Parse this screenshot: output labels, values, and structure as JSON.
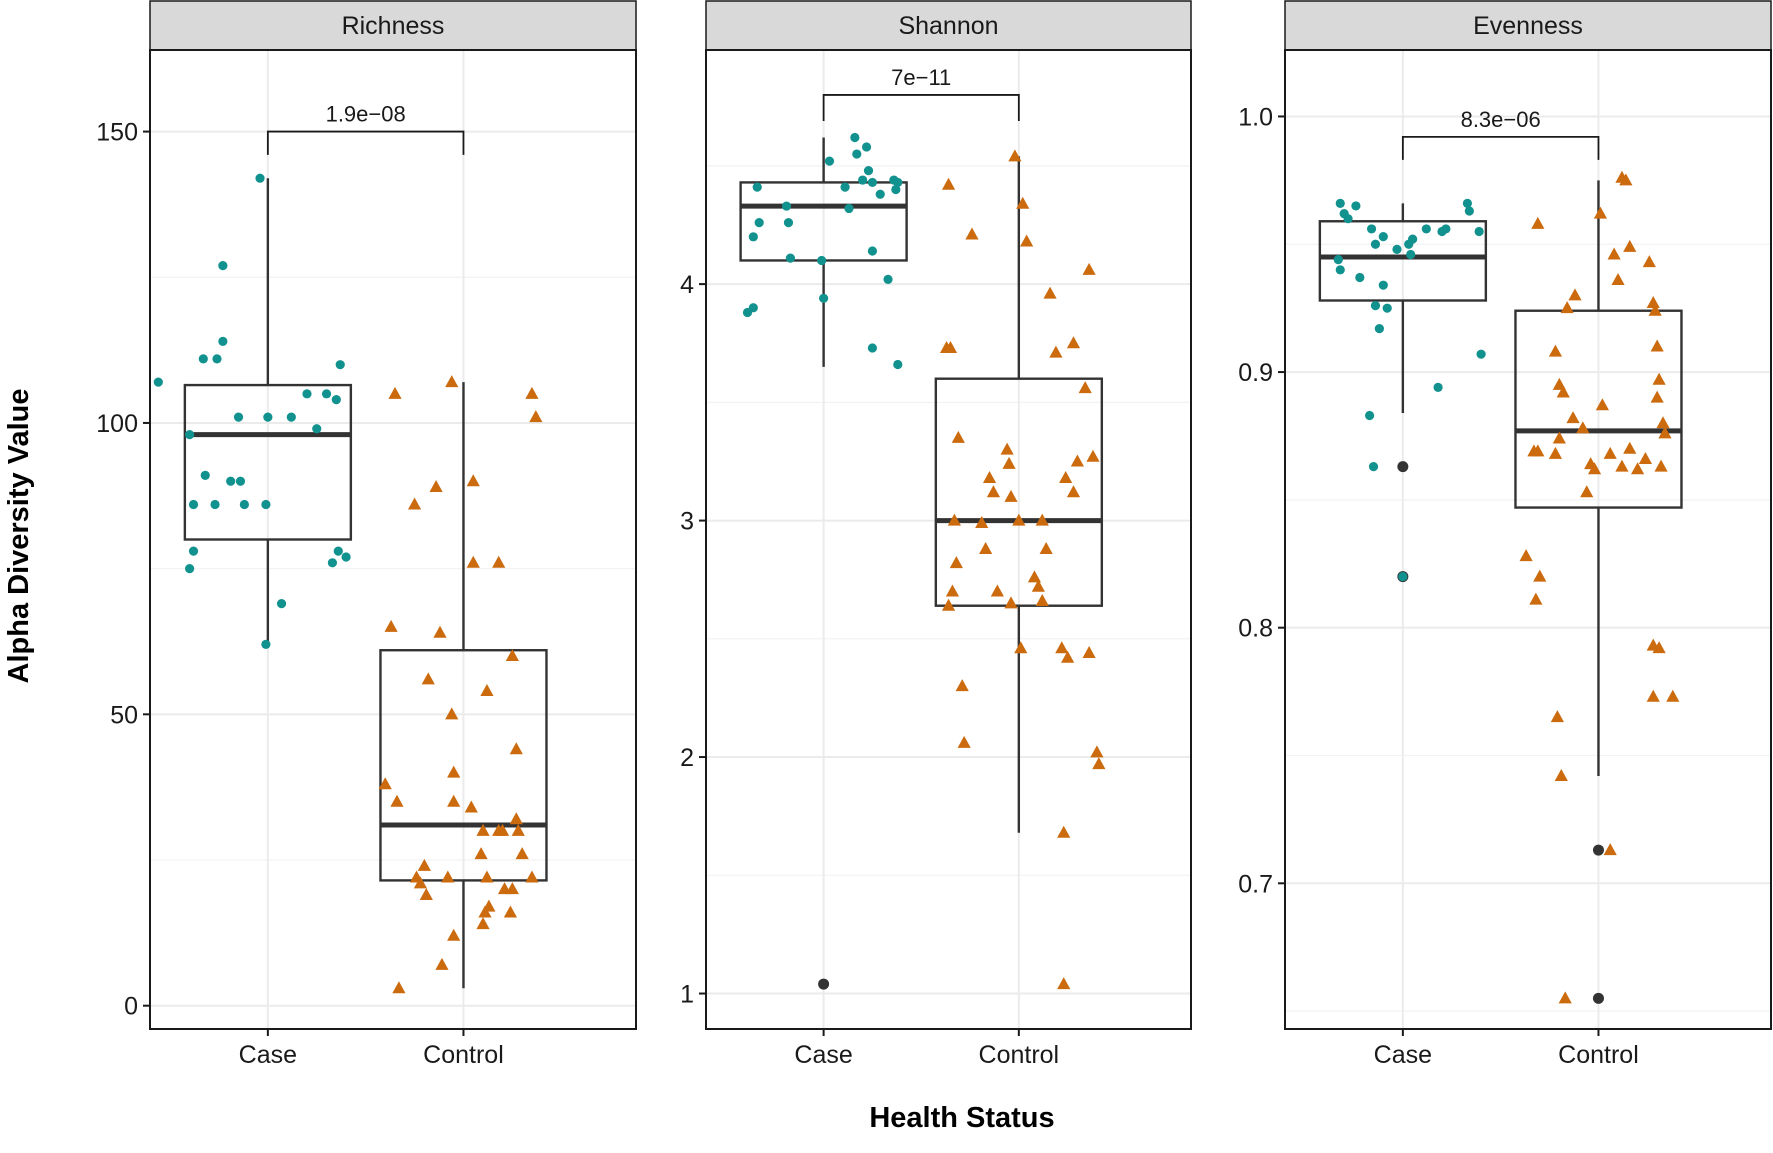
{
  "chart_data": {
    "type": "box",
    "xlabel": "Health Status",
    "ylabel": "Alpha Diversity Value",
    "colors": {
      "Case": "#12928f",
      "Control": "#cc6a0e",
      "outlier": "#333333",
      "strip_bg": "#d9d9d9",
      "grid": "#ebebeb",
      "box": "#333333"
    },
    "markers": {
      "Case": "circle",
      "Control": "triangle"
    },
    "categories": [
      "Case",
      "Control"
    ],
    "panels": [
      {
        "title": "Richness",
        "ylim": [
          -4,
          164
        ],
        "yticks": [
          0,
          50,
          100,
          150
        ],
        "yticklabels": [
          "0",
          "50",
          "100",
          "150"
        ],
        "minor": [
          25,
          75,
          125
        ],
        "pvalue": "1.9e−08",
        "bracket_y": 150,
        "bracket_drop": 146,
        "boxes": [
          {
            "group": "Case",
            "q1": 80,
            "median": 98,
            "q3": 106.5,
            "lower": 62,
            "upper": 142
          },
          {
            "group": "Control",
            "q1": 21.5,
            "median": 31,
            "q3": 61,
            "lower": 3,
            "upper": 107
          }
        ],
        "outliers": [],
        "points": {
          "Case": [
            [
              -0.56,
              107
            ],
            [
              -0.33,
              111
            ],
            [
              -0.32,
              91
            ],
            [
              -0.26,
              111
            ],
            [
              -0.15,
              101
            ],
            [
              -0.12,
              86
            ],
            [
              -0.23,
              127
            ],
            [
              -0.23,
              114
            ],
            [
              -0.04,
              142
            ],
            [
              -0.27,
              86
            ],
            [
              -0.38,
              86
            ],
            [
              -0.4,
              75
            ],
            [
              -0.38,
              78
            ],
            [
              -0.4,
              98
            ],
            [
              -0.19,
              90
            ],
            [
              -0.14,
              90
            ],
            [
              0.0,
              101
            ],
            [
              0.07,
              69
            ],
            [
              0.12,
              101
            ],
            [
              0.2,
              105
            ],
            [
              0.25,
              99
            ],
            [
              0.3,
              105
            ],
            [
              0.35,
              104
            ],
            [
              0.33,
              76
            ],
            [
              0.37,
              110
            ],
            [
              0.36,
              78
            ],
            [
              0.4,
              77
            ],
            [
              -0.01,
              62
            ],
            [
              -0.01,
              86
            ]
          ],
          "Control": [
            [
              -0.35,
              105
            ],
            [
              -0.25,
              86
            ],
            [
              -0.14,
              89
            ],
            [
              -0.06,
              107
            ],
            [
              -0.4,
              38
            ],
            [
              -0.34,
              35
            ],
            [
              -0.37,
              65
            ],
            [
              -0.18,
              56
            ],
            [
              -0.12,
              64
            ],
            [
              -0.06,
              50
            ],
            [
              -0.05,
              40
            ],
            [
              -0.05,
              35
            ],
            [
              0.04,
              34
            ],
            [
              0.05,
              90
            ],
            [
              0.05,
              76
            ],
            [
              0.1,
              30
            ],
            [
              0.09,
              26
            ],
            [
              0.12,
              22
            ],
            [
              0.12,
              54
            ],
            [
              0.18,
              76
            ],
            [
              0.25,
              60
            ],
            [
              0.27,
              32
            ],
            [
              0.27,
              44
            ],
            [
              0.28,
              30
            ],
            [
              0.3,
              26
            ],
            [
              0.35,
              105
            ],
            [
              0.37,
              101
            ],
            [
              0.35,
              22
            ],
            [
              -0.08,
              22
            ],
            [
              -0.05,
              12
            ],
            [
              -0.11,
              7
            ],
            [
              -0.2,
              24
            ],
            [
              -0.24,
              22
            ],
            [
              -0.22,
              21
            ],
            [
              -0.19,
              19
            ],
            [
              0.11,
              16
            ],
            [
              0.1,
              14
            ],
            [
              0.13,
              17
            ],
            [
              0.2,
              30
            ],
            [
              0.21,
              20
            ],
            [
              0.24,
              16
            ],
            [
              0.25,
              20
            ],
            [
              -0.33,
              3
            ],
            [
              0.18,
              30
            ]
          ]
        }
      },
      {
        "title": "Shannon",
        "ylim": [
          0.85,
          4.99
        ],
        "yticks": [
          1,
          2,
          3,
          4
        ],
        "yticklabels": [
          "1",
          "2",
          "3",
          "4"
        ],
        "minor": [
          1.5,
          2.5,
          3.5,
          4.5
        ],
        "pvalue": "7e−11",
        "bracket_y": 4.8,
        "bracket_drop": 4.69,
        "boxes": [
          {
            "group": "Case",
            "q1": 4.1,
            "median": 4.33,
            "q3": 4.43,
            "lower": 3.65,
            "upper": 4.62
          },
          {
            "group": "Control",
            "q1": 2.64,
            "median": 3.0,
            "q3": 3.6,
            "lower": 1.68,
            "upper": 4.54
          }
        ],
        "outliers": [
          [
            0.0,
            1.04
          ]
        ],
        "points": {
          "Case": [
            [
              -0.39,
              3.88
            ],
            [
              -0.36,
              3.9
            ],
            [
              -0.36,
              4.2
            ],
            [
              -0.33,
              4.26
            ],
            [
              -0.34,
              4.41
            ],
            [
              -0.19,
              4.33
            ],
            [
              -0.18,
              4.26
            ],
            [
              -0.17,
              4.11
            ],
            [
              -0.01,
              4.1
            ],
            [
              0.0,
              3.94
            ],
            [
              0.03,
              4.52
            ],
            [
              0.11,
              4.41
            ],
            [
              0.13,
              4.32
            ],
            [
              0.17,
              4.55
            ],
            [
              0.2,
              4.44
            ],
            [
              0.22,
              4.58
            ],
            [
              0.23,
              4.48
            ],
            [
              0.25,
              4.43
            ],
            [
              0.25,
              4.14
            ],
            [
              0.29,
              4.38
            ],
            [
              0.33,
              4.02
            ],
            [
              0.36,
              4.44
            ],
            [
              0.37,
              4.4
            ],
            [
              0.38,
              3.66
            ],
            [
              0.16,
              4.62
            ],
            [
              0.25,
              3.73
            ],
            [
              0.38,
              4.43
            ]
          ],
          "Control": [
            [
              -0.36,
              4.42
            ],
            [
              -0.37,
              3.73
            ],
            [
              -0.35,
              3.73
            ],
            [
              -0.31,
              3.35
            ],
            [
              -0.33,
              3.0
            ],
            [
              -0.32,
              2.82
            ],
            [
              -0.34,
              2.7
            ],
            [
              -0.36,
              2.64
            ],
            [
              -0.29,
              2.3
            ],
            [
              -0.28,
              2.06
            ],
            [
              -0.24,
              4.21
            ],
            [
              -0.19,
              2.99
            ],
            [
              -0.17,
              2.88
            ],
            [
              -0.15,
              3.18
            ],
            [
              -0.13,
              3.12
            ],
            [
              -0.11,
              2.7
            ],
            [
              -0.06,
              3.3
            ],
            [
              -0.05,
              3.24
            ],
            [
              -0.04,
              3.1
            ],
            [
              -0.04,
              2.65
            ],
            [
              -0.02,
              4.54
            ],
            [
              0.0,
              3.0
            ],
            [
              0.01,
              2.46
            ],
            [
              0.02,
              4.34
            ],
            [
              0.04,
              4.18
            ],
            [
              0.08,
              2.76
            ],
            [
              0.1,
              2.72
            ],
            [
              0.12,
              2.66
            ],
            [
              0.12,
              3.0
            ],
            [
              0.14,
              2.88
            ],
            [
              0.16,
              3.96
            ],
            [
              0.19,
              3.71
            ],
            [
              0.22,
              2.46
            ],
            [
              0.24,
              3.18
            ],
            [
              0.25,
              2.42
            ],
            [
              0.28,
              3.75
            ],
            [
              0.3,
              3.25
            ],
            [
              0.34,
              3.56
            ],
            [
              0.36,
              2.44
            ],
            [
              0.38,
              3.27
            ],
            [
              0.4,
              2.02
            ],
            [
              0.41,
              1.97
            ],
            [
              0.36,
              4.06
            ],
            [
              0.23,
              1.68
            ],
            [
              0.23,
              1.04
            ],
            [
              0.28,
              3.12
            ]
          ]
        }
      },
      {
        "title": "Evenness",
        "ylim": [
          0.643,
          1.026
        ],
        "yticks": [
          0.7,
          0.8,
          0.9,
          1.0
        ],
        "yticklabels": [
          "0.7",
          "0.8",
          "0.9",
          "1.0"
        ],
        "minor": [
          0.65,
          0.75,
          0.85,
          0.95
        ],
        "pvalue": "8.3e−06",
        "bracket_y": 0.992,
        "bracket_drop": 0.983,
        "boxes": [
          {
            "group": "Case",
            "q1": 0.928,
            "median": 0.945,
            "q3": 0.959,
            "lower": 0.884,
            "upper": 0.966
          },
          {
            "group": "Control",
            "q1": 0.847,
            "median": 0.877,
            "q3": 0.924,
            "lower": 0.742,
            "upper": 0.975
          }
        ],
        "outliers": [
          [
            0.0,
            0.863
          ],
          [
            0.0,
            0.82
          ],
          [
            1.0,
            0.713
          ],
          [
            1.0,
            0.655
          ]
        ],
        "points": {
          "Case": [
            [
              -0.32,
              0.966
            ],
            [
              -0.3,
              0.962
            ],
            [
              -0.28,
              0.96
            ],
            [
              -0.24,
              0.965
            ],
            [
              -0.16,
              0.956
            ],
            [
              -0.14,
              0.95
            ],
            [
              -0.1,
              0.953
            ],
            [
              -0.03,
              0.948
            ],
            [
              -0.33,
              0.944
            ],
            [
              -0.32,
              0.94
            ],
            [
              -0.22,
              0.937
            ],
            [
              -0.1,
              0.934
            ],
            [
              0.03,
              0.95
            ],
            [
              0.05,
              0.952
            ],
            [
              0.12,
              0.956
            ],
            [
              0.22,
              0.956
            ],
            [
              0.33,
              0.966
            ],
            [
              0.34,
              0.963
            ],
            [
              0.39,
              0.955
            ],
            [
              0.2,
              0.955
            ],
            [
              -0.14,
              0.926
            ],
            [
              -0.12,
              0.917
            ],
            [
              0.04,
              0.946
            ],
            [
              -0.17,
              0.883
            ],
            [
              -0.15,
              0.863
            ],
            [
              -0.08,
              0.925
            ],
            [
              0.18,
              0.894
            ],
            [
              0.4,
              0.907
            ],
            [
              0.0,
              0.82
            ]
          ],
          "Control": [
            [
              -0.31,
              0.958
            ],
            [
              -0.33,
              0.869
            ],
            [
              -0.31,
              0.869
            ],
            [
              -0.3,
              0.82
            ],
            [
              -0.37,
              0.828
            ],
            [
              -0.32,
              0.811
            ],
            [
              -0.22,
              0.908
            ],
            [
              -0.2,
              0.895
            ],
            [
              -0.18,
              0.892
            ],
            [
              -0.22,
              0.868
            ],
            [
              -0.2,
              0.874
            ],
            [
              -0.16,
              0.925
            ],
            [
              -0.12,
              0.93
            ],
            [
              -0.13,
              0.882
            ],
            [
              -0.08,
              0.878
            ],
            [
              -0.06,
              0.853
            ],
            [
              -0.04,
              0.864
            ],
            [
              -0.02,
              0.862
            ],
            [
              0.01,
              0.962
            ],
            [
              0.02,
              0.887
            ],
            [
              0.06,
              0.868
            ],
            [
              0.08,
              0.946
            ],
            [
              0.1,
              0.936
            ],
            [
              0.12,
              0.976
            ],
            [
              0.14,
              0.975
            ],
            [
              0.16,
              0.949
            ],
            [
              0.16,
              0.87
            ],
            [
              0.2,
              0.862
            ],
            [
              0.24,
              0.866
            ],
            [
              0.26,
              0.943
            ],
            [
              0.28,
              0.927
            ],
            [
              0.29,
              0.924
            ],
            [
              0.3,
              0.91
            ],
            [
              0.31,
              0.897
            ],
            [
              0.3,
              0.89
            ],
            [
              0.32,
              0.863
            ],
            [
              0.33,
              0.88
            ],
            [
              0.34,
              0.876
            ],
            [
              0.28,
              0.793
            ],
            [
              0.31,
              0.792
            ],
            [
              0.28,
              0.773
            ],
            [
              0.38,
              0.773
            ],
            [
              -0.21,
              0.765
            ],
            [
              -0.19,
              0.742
            ],
            [
              -0.17,
              0.655
            ],
            [
              0.06,
              0.713
            ],
            [
              0.12,
              0.863
            ]
          ]
        }
      }
    ]
  }
}
